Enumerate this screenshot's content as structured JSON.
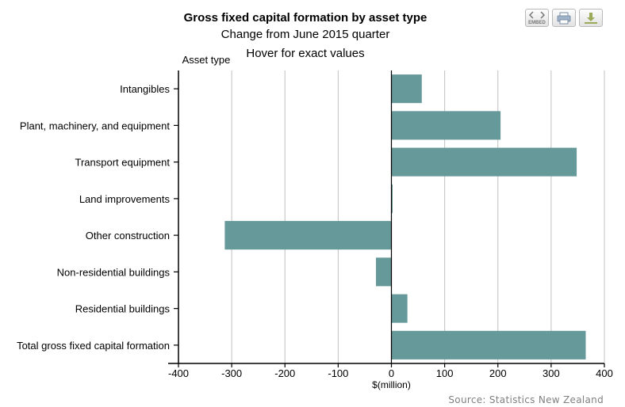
{
  "title": "Gross fixed capital formation by asset type",
  "subtitle": "Change from June 2015 quarter",
  "hover_note": "Hover for exact values",
  "source": "Source: Statistics New Zealand",
  "toolbar": [
    {
      "name": "embed-button",
      "icon": "embed-icon",
      "label": "EMBED"
    },
    {
      "name": "print-button",
      "icon": "printer-icon"
    },
    {
      "name": "download-button",
      "icon": "download-icon"
    }
  ],
  "chart_data": {
    "type": "bar",
    "orientation": "horizontal",
    "categories": [
      "Intangibles",
      "Plant, machinery, and equipment",
      "Transport equipment",
      "Land improvements",
      "Other construction",
      "Non-residential buildings",
      "Residential buildings",
      "Total gross fixed capital formation"
    ],
    "values": [
      57,
      205,
      348,
      2,
      -313,
      -29,
      30,
      365
    ],
    "xlabel": "$(million)",
    "ylabel": "Asset type",
    "xlim": [
      -400,
      400
    ],
    "xticks": [
      -400,
      -300,
      -200,
      -100,
      0,
      100,
      200,
      300,
      400
    ],
    "grid": "vertical",
    "bar_color": "#669999",
    "grid_color": "#c0c0c0",
    "legend": "none"
  }
}
